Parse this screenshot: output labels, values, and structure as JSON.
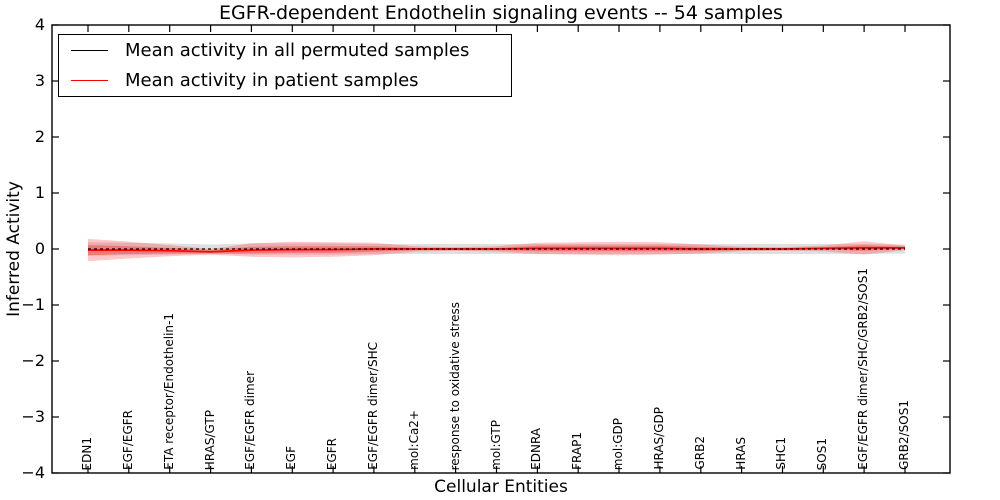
{
  "title": "EGFR-dependent Endothelin signaling events -- 54 samples",
  "legend": {
    "entries": [
      {
        "label": "Mean activity in all permuted samples",
        "color": "#000000"
      },
      {
        "label": "Mean activity in patient samples",
        "color": "#ff0000"
      }
    ]
  },
  "colors": {
    "patient_line": "#ff0000",
    "permuted_line": "#000000",
    "patient_band": "#ff0000",
    "permuted_band": "#808080",
    "axis": "#000000",
    "background": "#ffffff"
  },
  "chart_data": {
    "type": "line",
    "title": "EGFR-dependent Endothelin signaling events -- 54 samples",
    "xlabel": "Cellular Entities",
    "ylabel": "Inferred Activity",
    "ylim": [
      -4,
      4
    ],
    "y_ticks": [
      4,
      3,
      2,
      1,
      0,
      -1,
      -2,
      -3,
      -4
    ],
    "y_tick_labels": [
      "4",
      "3",
      "2",
      "1",
      "0",
      "−1",
      "−2",
      "−3",
      "−4"
    ],
    "grid": false,
    "legend_position": "upper left",
    "categories": [
      "EDN1",
      "EGF/EGFR",
      "ETA receptor/Endothelin-1",
      "HRAS/GTP",
      "EGF/EGFR dimer",
      "EGF",
      "EGFR",
      "EGF/EGFR dimer/SHC",
      "mol:Ca2+",
      "response to oxidative stress",
      "mol:GTP",
      "EDNRA",
      "FRAP1",
      "mol:GDP",
      "HRAS/GDP",
      "GRB2",
      "HRAS",
      "SHC1",
      "SOS1",
      "EGF/EGFR dimer/SHC/GRB2/SOS1",
      "GRB2/SOS1"
    ],
    "series": [
      {
        "name": "Mean activity in all permuted samples",
        "color": "#000000",
        "line_style": "dashed",
        "values": [
          0,
          0,
          0,
          0,
          0,
          0,
          0,
          0,
          0,
          0,
          0,
          0,
          0,
          0,
          0,
          0,
          0,
          0,
          0,
          0,
          0
        ]
      },
      {
        "name": "Mean activity in patient samples",
        "color": "#ff0000",
        "line_style": "solid",
        "values": [
          -0.02,
          -0.02,
          -0.03,
          -0.05,
          -0.02,
          -0.01,
          -0.01,
          0,
          0,
          0,
          0,
          0.01,
          0.01,
          0.01,
          0.01,
          0,
          0,
          0,
          0.01,
          0.02,
          0.02
        ]
      }
    ],
    "bands": [
      {
        "name": "permuted-samples-spread",
        "color": "#808080",
        "opacity": 0.25,
        "center_series": 0,
        "half_widths": [
          0.12,
          0.11,
          0.1,
          0.08,
          0.1,
          0.1,
          0.1,
          0.09,
          0.09,
          0.09,
          0.09,
          0.09,
          0.09,
          0.09,
          0.09,
          0.09,
          0.09,
          0.09,
          0.09,
          0.09,
          0.08
        ]
      },
      {
        "name": "patient-samples-spread-outer",
        "color": "#ff0000",
        "opacity": 0.22,
        "center_series": 1,
        "half_widths": [
          0.2,
          0.15,
          0.1,
          0.05,
          0.12,
          0.14,
          0.13,
          0.11,
          0.05,
          0.03,
          0.05,
          0.1,
          0.11,
          0.12,
          0.11,
          0.08,
          0.04,
          0.03,
          0.05,
          0.12,
          0.04
        ]
      },
      {
        "name": "patient-samples-spread-inner",
        "color": "#ff0000",
        "opacity": 0.3,
        "center_series": 1,
        "half_widths": [
          0.09,
          0.07,
          0.05,
          0.03,
          0.06,
          0.06,
          0.06,
          0.05,
          0.02,
          0.015,
          0.02,
          0.05,
          0.05,
          0.05,
          0.05,
          0.04,
          0.02,
          0.015,
          0.02,
          0.05,
          0.02
        ]
      }
    ]
  }
}
